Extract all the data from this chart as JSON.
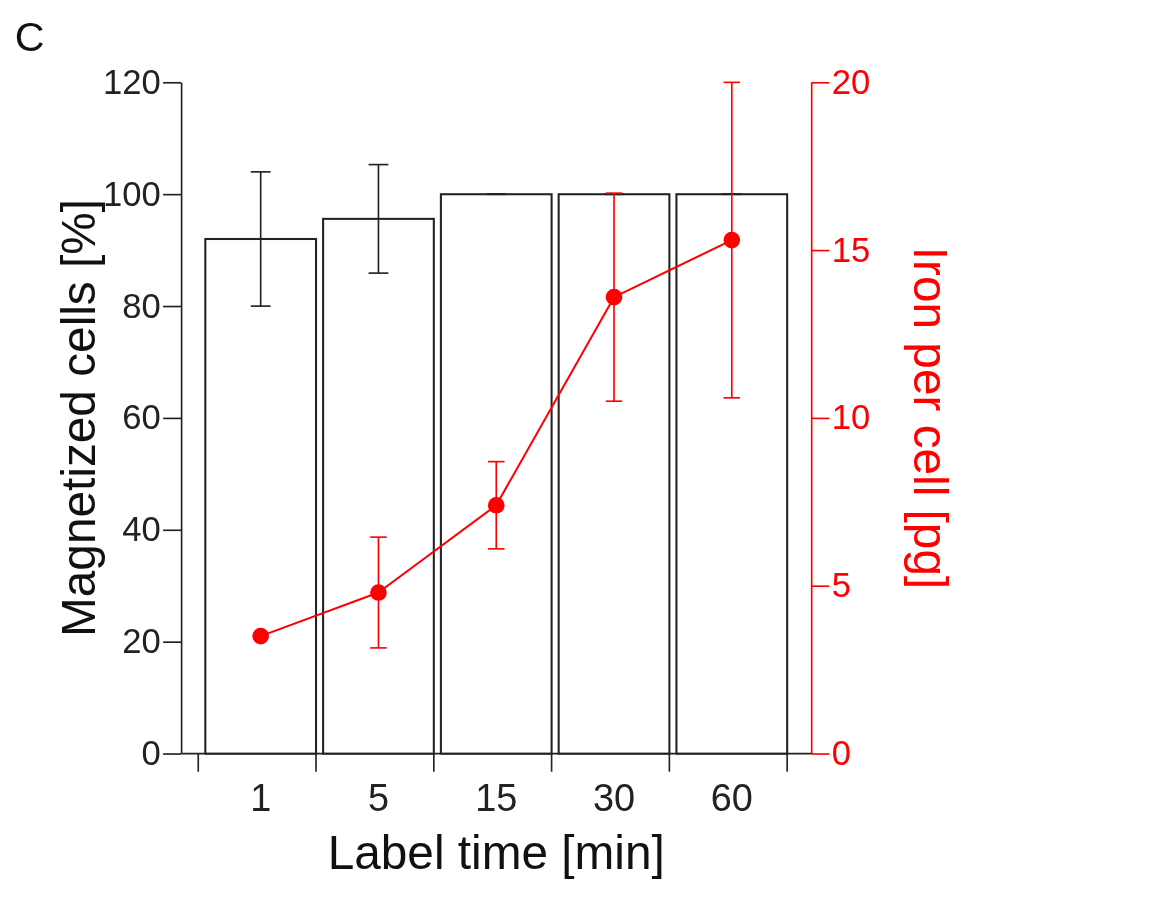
{
  "chart_data": {
    "type": "bar",
    "xlabel": "Label time [min]",
    "ylabel": "Magnetized cells [%]",
    "y2label": "Iron per cell [pg]",
    "annotations": [
      "C"
    ],
    "categories": [
      "1",
      "5",
      "15",
      "30",
      "60"
    ],
    "series": [
      {
        "color": "#ffffff",
        "values": [
          92,
          95.6,
          100,
          100,
          100
        ],
        "errors": [
          12,
          9.7,
          0,
          0,
          0
        ]
      },
      {
        "type": "line",
        "axis": "y2",
        "color": "#ff0000",
        "values": [
          3.5,
          4.8,
          7.4,
          13.6,
          15.3
        ],
        "errors": [
          null,
          1.65,
          1.3,
          3.1,
          4.7
        ]
      }
    ],
    "ylim": [
      0,
      120
    ],
    "yticks": [
      0,
      20,
      40,
      60,
      80,
      100,
      120
    ],
    "y2lim": [
      0,
      20
    ],
    "y2ticks": [
      0,
      5,
      10,
      15,
      20
    ],
    "marker": "circle",
    "grid": false
  }
}
